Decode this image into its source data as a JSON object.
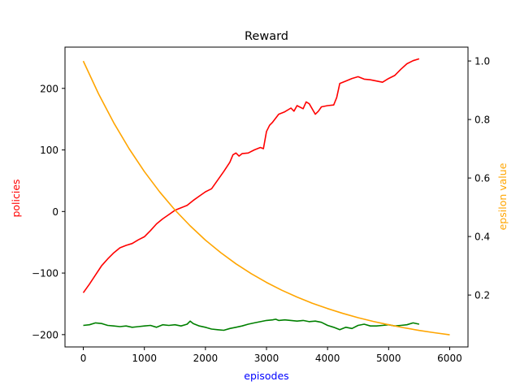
{
  "chart_data": {
    "type": "line",
    "title": "Reward",
    "xlabel": "episodes",
    "ylabel": "policies",
    "ylabel_right": "epsilon value",
    "colors": {
      "xlabel": "#0000ff",
      "ylabel": "#ff0000",
      "ylabel_right": "#ffa500",
      "reward": "#ff0000",
      "baseline": "#008000",
      "epsilon": "#ffa500"
    },
    "xlim": [
      -300,
      6300
    ],
    "ylim": [
      -220,
      267
    ],
    "ylim_right": [
      0.0226,
      1.0474
    ],
    "x_ticks": [
      0,
      1000,
      2000,
      3000,
      4000,
      5000,
      6000
    ],
    "x_tick_labels": [
      "0",
      "1000",
      "2000",
      "3000",
      "4000",
      "5000",
      "6000"
    ],
    "y_ticks": [
      -200,
      -100,
      0,
      100,
      200
    ],
    "y_tick_labels": [
      "−200",
      "−100",
      "0",
      "100",
      "200"
    ],
    "y_ticks_right": [
      0.2,
      0.4,
      0.6,
      0.8,
      1.0
    ],
    "y_tick_labels_right": [
      "0.2",
      "0.4",
      "0.6",
      "0.8",
      "1.0"
    ],
    "grid": false,
    "legend": "none",
    "series": [
      {
        "axis": "left",
        "color": "#ff0000",
        "x": [
          0,
          100,
          200,
          300,
          400,
          500,
          600,
          700,
          800,
          900,
          1000,
          1100,
          1200,
          1300,
          1400,
          1500,
          1600,
          1700,
          1800,
          1900,
          2000,
          2100,
          2200,
          2300,
          2400,
          2450,
          2500,
          2550,
          2600,
          2700,
          2800,
          2900,
          2950,
          3000,
          3050,
          3100,
          3200,
          3300,
          3400,
          3450,
          3500,
          3600,
          3650,
          3700,
          3800,
          3850,
          3900,
          4000,
          4100,
          4150,
          4200,
          4300,
          4400,
          4500,
          4600,
          4700,
          4800,
          4900,
          5000,
          5100,
          5200,
          5300,
          5400,
          5500
        ],
        "y": [
          -132,
          -118,
          -103,
          -88,
          -77,
          -67,
          -59,
          -55,
          -52,
          -46,
          -41,
          -31,
          -20,
          -12,
          -5,
          2,
          6,
          10,
          18,
          25,
          32,
          37,
          51,
          65,
          80,
          92,
          95,
          90,
          94,
          95,
          100,
          104,
          102,
          130,
          140,
          145,
          158,
          162,
          168,
          163,
          172,
          167,
          178,
          175,
          158,
          163,
          170,
          172,
          173,
          185,
          208,
          212,
          216,
          219,
          215,
          214,
          212,
          210,
          216,
          221,
          231,
          240,
          245,
          248
        ]
      },
      {
        "axis": "left",
        "color": "#008000",
        "x": [
          0,
          100,
          200,
          300,
          400,
          500,
          600,
          700,
          800,
          900,
          1000,
          1100,
          1200,
          1300,
          1400,
          1500,
          1600,
          1700,
          1750,
          1800,
          1900,
          2000,
          2100,
          2200,
          2300,
          2400,
          2500,
          2600,
          2700,
          2800,
          2900,
          3000,
          3100,
          3150,
          3200,
          3300,
          3400,
          3500,
          3600,
          3700,
          3800,
          3900,
          4000,
          4100,
          4200,
          4300,
          4400,
          4500,
          4600,
          4700,
          4800,
          4900,
          5000,
          5100,
          5200,
          5300,
          5400,
          5500
        ],
        "y": [
          -185,
          -184,
          -181,
          -182,
          -185,
          -186,
          -187,
          -186,
          -188,
          -187,
          -186,
          -185,
          -188,
          -184,
          -185,
          -184,
          -186,
          -183,
          -178,
          -182,
          -186,
          -188,
          -191,
          -192,
          -193,
          -190,
          -188,
          -186,
          -183,
          -181,
          -179,
          -177,
          -176,
          -175,
          -177,
          -176,
          -177,
          -178,
          -177,
          -179,
          -178,
          -180,
          -185,
          -188,
          -192,
          -188,
          -190,
          -185,
          -183,
          -186,
          -186,
          -185,
          -184,
          -186,
          -185,
          -184,
          -181,
          -183
        ]
      },
      {
        "axis": "right",
        "color": "#ffa500",
        "x": [
          0,
          250,
          500,
          750,
          1000,
          1250,
          1500,
          1750,
          2000,
          2250,
          2500,
          2750,
          3000,
          3250,
          3500,
          3750,
          4000,
          4250,
          4500,
          4750,
          5000,
          5250,
          5500,
          5750,
          6000
        ],
        "y": [
          1.0,
          0.8878,
          0.7884,
          0.7002,
          0.6219,
          0.5525,
          0.4909,
          0.4363,
          0.3879,
          0.3449,
          0.3068,
          0.273,
          0.2431,
          0.2165,
          0.193,
          0.1721,
          0.1536,
          0.1372,
          0.1226,
          0.1097,
          0.0983,
          0.0881,
          0.0791,
          0.0711,
          0.064
        ]
      }
    ]
  }
}
